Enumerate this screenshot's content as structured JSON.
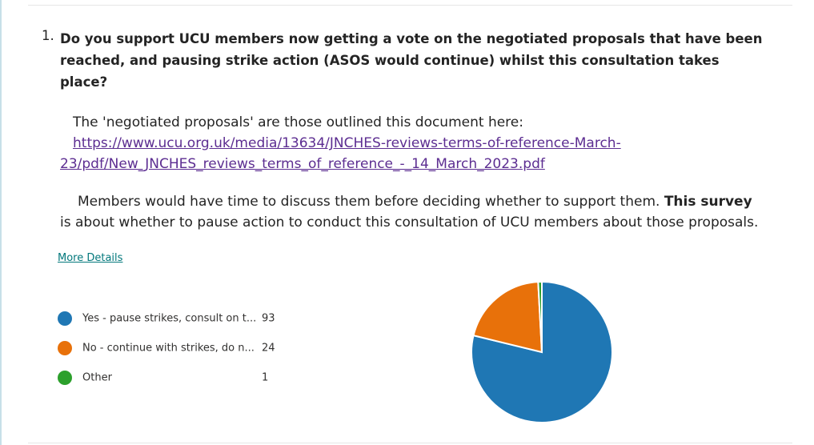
{
  "question": {
    "number": "1.",
    "text": "Do you support UCU members now getting a vote on the negotiated proposals that have been reached, and pausing strike action (ASOS would continue) whilst this consultation takes place?"
  },
  "description": {
    "intro": "The 'negotiated proposals' are those outlined this document here:",
    "link": "https://www.ucu.org.uk/media/13634/JNCHES-reviews-terms-of-reference-March-23/pdf/New_JNCHES_reviews_terms_of_reference_-_14_March_2023.pdf",
    "para2_start": "Members would have time to discuss them before deciding whether to support them.",
    "para2_bold": "This survey",
    "para2_end": "is about whether to pause action to conduct this consultation of UCU members about those proposals."
  },
  "more_details": "More Details",
  "chart_data": {
    "type": "pie",
    "categories": [
      "Yes - pause strikes, consult on t...",
      "No - continue with strikes, do n...",
      "Other"
    ],
    "values": [
      93,
      24,
      1
    ],
    "colors": [
      "#1f77b4",
      "#e8710a",
      "#2ca02c"
    ]
  }
}
